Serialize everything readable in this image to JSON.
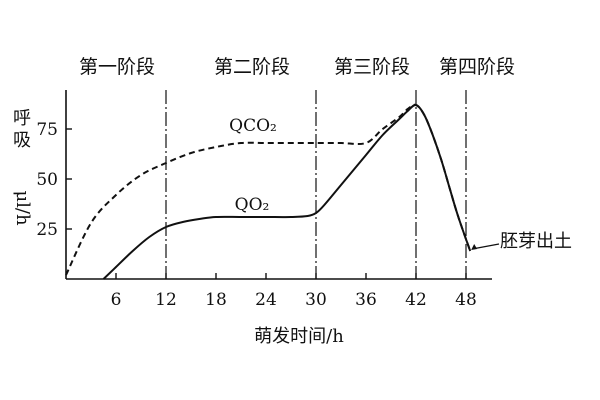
{
  "chart_data": {
    "type": "line",
    "title": "",
    "xlabel": "萌发时间/h",
    "ylabel_chars": [
      "呼",
      "吸"
    ],
    "ylabel_unit": "μl/h",
    "xlim": [
      0,
      50
    ],
    "ylim": [
      0,
      95
    ],
    "x_ticks": [
      6,
      12,
      18,
      24,
      30,
      36,
      42,
      48
    ],
    "y_ticks": [
      25,
      50,
      75
    ],
    "stage_boundaries": [
      12,
      30,
      42,
      48
    ],
    "stages": [
      {
        "label": "第一阶段",
        "x_center": 6
      },
      {
        "label": "第二阶段",
        "x_center": 21
      },
      {
        "label": "第三阶段",
        "x_center": 36
      },
      {
        "label": "第四阶段",
        "x_center": 45
      }
    ],
    "series": [
      {
        "name": "QCO₂",
        "line_style": "dashed",
        "x": [
          0,
          3,
          6,
          9,
          12,
          15,
          18,
          21,
          24,
          27,
          30,
          33,
          36,
          38,
          40,
          41,
          42,
          43,
          44,
          45,
          46,
          47,
          48.5
        ],
        "y": [
          2,
          28,
          42,
          52,
          58,
          63,
          66,
          68,
          68,
          68,
          68,
          68,
          68,
          75,
          81,
          85,
          87,
          82,
          72,
          60,
          46,
          32,
          14
        ]
      },
      {
        "name": "QO₂",
        "line_style": "solid",
        "x": [
          4.5,
          6,
          8,
          10,
          12,
          14,
          16,
          18,
          21,
          24,
          27,
          29,
          30,
          31,
          33,
          36,
          38,
          40,
          41,
          42,
          43,
          44,
          45,
          46,
          47,
          48.5
        ],
        "y": [
          0,
          6,
          14,
          21,
          26,
          28.5,
          30,
          31,
          31,
          31,
          31,
          31.5,
          33,
          37,
          47,
          62,
          72,
          80,
          84,
          87,
          82,
          72,
          60,
          46,
          32,
          14
        ]
      }
    ],
    "series_labels": [
      {
        "text": "QCO₂",
        "series": 0
      },
      {
        "text": "QO₂",
        "series": 1
      }
    ],
    "annotation": {
      "text": "胚芽出土",
      "x": 48.5,
      "y": 14
    },
    "grid": false,
    "legend": "none"
  }
}
